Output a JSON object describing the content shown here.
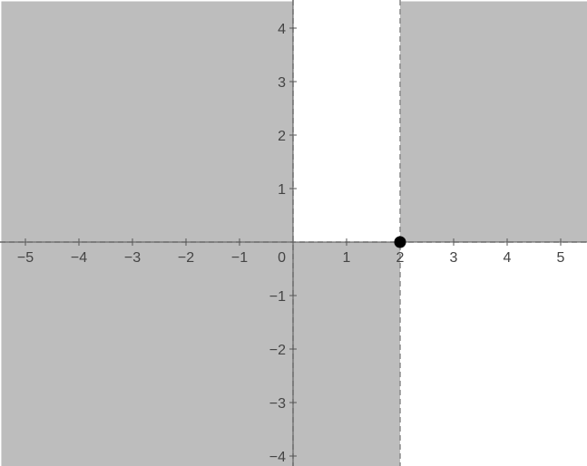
{
  "chart_data": {
    "type": "area",
    "x_range": [
      -5.45,
      5.5
    ],
    "y_range": [
      -4.2,
      4.5
    ],
    "grid": false,
    "x_ticks": [
      -5,
      -4,
      -3,
      -2,
      -1,
      1,
      2,
      3,
      4,
      5
    ],
    "y_ticks": [
      -4,
      -3,
      -2,
      -1,
      1,
      2,
      3,
      4
    ],
    "x_tick_labels": [
      "−5",
      "−4",
      "−3",
      "−2",
      "−1",
      "1",
      "2",
      "3",
      "4",
      "5"
    ],
    "y_tick_labels": [
      "−4",
      "−3",
      "−2",
      "−1",
      "1",
      "2",
      "3",
      "4"
    ],
    "origin_label": "0",
    "shaded_regions": [
      {
        "x": [
          -5.45,
          0
        ],
        "y": [
          0,
          4.5
        ]
      },
      {
        "x": [
          -5.45,
          0
        ],
        "y": [
          -4.2,
          0
        ]
      },
      {
        "x": [
          0,
          2
        ],
        "y": [
          -4.2,
          0
        ]
      },
      {
        "x": [
          2,
          5.5
        ],
        "y": [
          0,
          4.5
        ]
      }
    ],
    "boundary_lines": [
      {
        "orientation": "vertical",
        "x": 0,
        "style": "dashed"
      },
      {
        "orientation": "vertical",
        "x": 2,
        "style": "dashed"
      },
      {
        "orientation": "horizontal",
        "y": 0,
        "style": "dashed"
      }
    ],
    "points": [
      {
        "x": 2,
        "y": 0
      }
    ],
    "colors": {
      "shade": "#bdbdbd",
      "axis": "#555555",
      "boundary": "#8a8a8a",
      "point": "#000000",
      "background": "#ffffff"
    }
  }
}
